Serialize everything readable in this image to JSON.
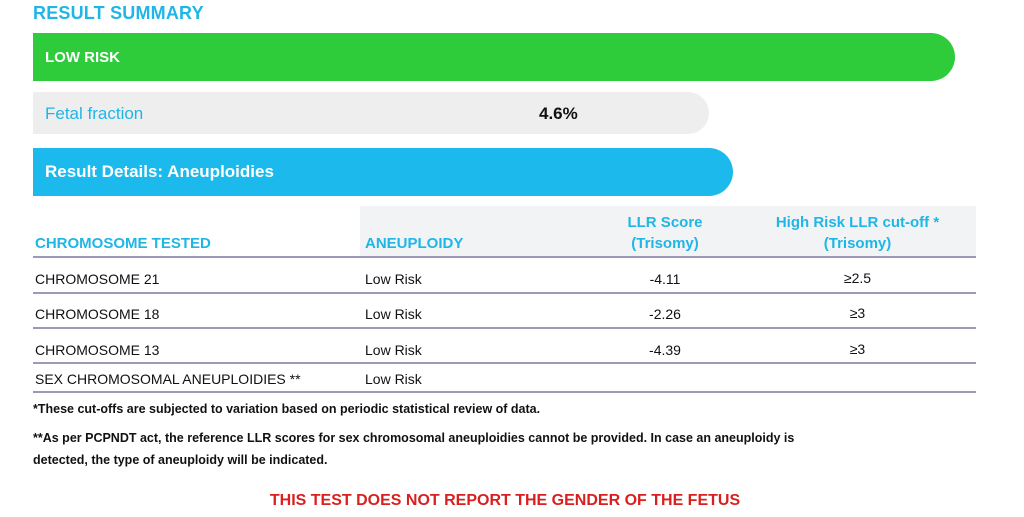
{
  "summary": {
    "title": "RESULT SUMMARY",
    "risk_label": "LOW RISK",
    "fetal_fraction_label": "Fetal fraction",
    "fetal_fraction_value": "4.6%"
  },
  "details": {
    "title": "Result Details: Aneuploidies"
  },
  "table": {
    "headers": {
      "chromosome": "CHROMOSOME TESTED",
      "aneuploidy": "ANEUPLOIDY",
      "llr_line1": "LLR Score",
      "llr_line2": "(Trisomy)",
      "cutoff_line1": "High Risk LLR cut-off *",
      "cutoff_line2": "(Trisomy)"
    },
    "rows": [
      {
        "chromosome": "CHROMOSOME 21",
        "aneuploidy": "Low Risk",
        "llr": "-4.11",
        "cutoff": "≥2.5"
      },
      {
        "chromosome": "CHROMOSOME 18",
        "aneuploidy": "Low Risk",
        "llr": "-2.26",
        "cutoff": "≥3"
      },
      {
        "chromosome": "CHROMOSOME 13",
        "aneuploidy": "Low Risk",
        "llr": "-4.39",
        "cutoff": "≥3"
      },
      {
        "chromosome": "SEX CHROMOSOMAL ANEUPLOIDIES **",
        "aneuploidy": "Low Risk",
        "llr": "",
        "cutoff": ""
      }
    ]
  },
  "notes": {
    "note1": "*These cut-offs are subjected to variation based on periodic statistical review of data.",
    "note2_line1": "**As per PCPNDT act, the reference LLR scores for sex chromosomal aneuploidies cannot be provided. In case an aneuploidy is",
    "note2_line2": "detected, the type of aneuploidy will be indicated."
  },
  "warning": "THIS TEST DOES NOT REPORT THE GENDER OF THE FETUS",
  "colors": {
    "accent": "#1fb6e6",
    "low_risk": "#2ecc3a",
    "warning": "#d92020"
  }
}
